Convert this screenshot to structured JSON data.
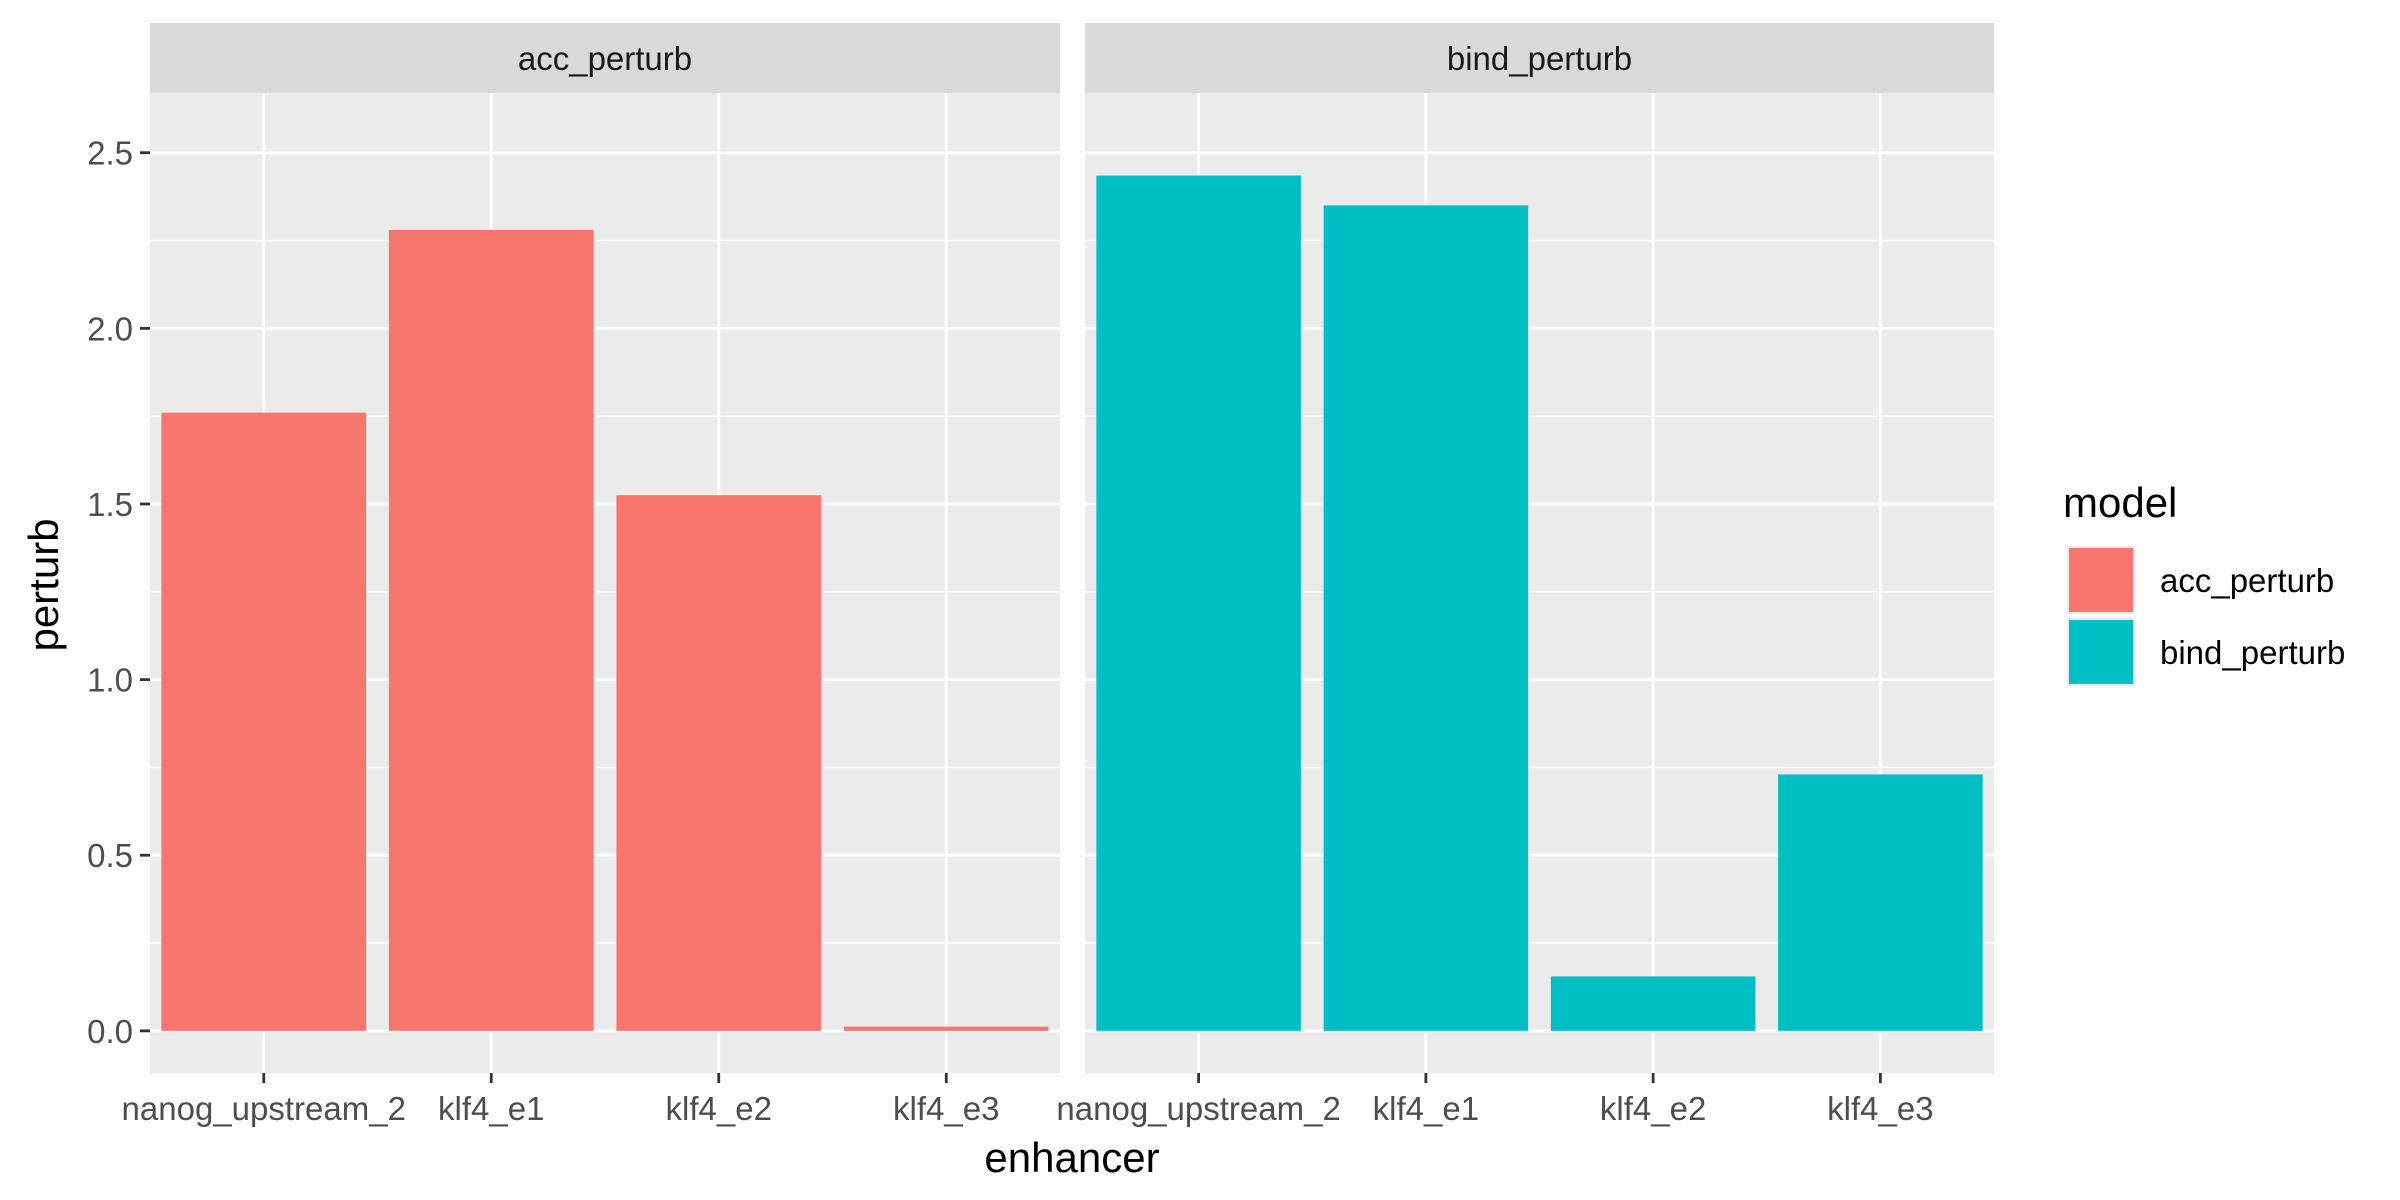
{
  "chart_data": {
    "type": "bar",
    "xlabel": "enhancer",
    "ylabel": "perturb",
    "ylim": [
      -0.12,
      2.67
    ],
    "y_ticks": [
      "0.0",
      "0.5",
      "1.0",
      "1.5",
      "2.0",
      "2.5"
    ],
    "y_tick_values": [
      0,
      0.5,
      1.0,
      1.5,
      2.0,
      2.5
    ],
    "grid": true,
    "categories": [
      "nanog_upstream_2",
      "klf4_e1",
      "klf4_e2",
      "klf4_e3"
    ],
    "legend": {
      "title": "model",
      "placement": "right",
      "entries": [
        "acc_perturb",
        "bind_perturb"
      ]
    },
    "panels": [
      {
        "strip_label": "acc_perturb",
        "color": "#F8766D",
        "values": [
          1.76,
          2.28,
          1.525,
          0.012
        ]
      },
      {
        "strip_label": "bind_perturb",
        "color": "#00BFC4",
        "values": [
          2.435,
          2.35,
          0.155,
          0.73
        ]
      }
    ]
  },
  "colors": {
    "panel_background": "#EBEBEB",
    "strip_background": "#D9D9D9",
    "grid": "#FFFFFF",
    "tick": "#333333"
  }
}
